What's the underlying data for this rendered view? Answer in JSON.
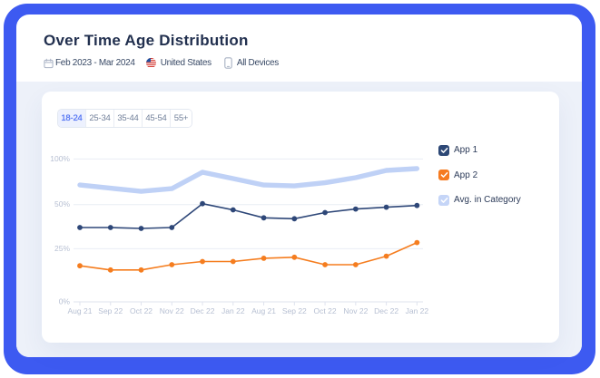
{
  "header": {
    "title": "Over Time Age Distribution",
    "date_range": "Feb 2023 - Mar 2024",
    "country": "United States",
    "devices": "All Devices"
  },
  "tabs": [
    {
      "label": "18-24",
      "selected": true
    },
    {
      "label": "25-34",
      "selected": false
    },
    {
      "label": "35-44",
      "selected": false
    },
    {
      "label": "45-54",
      "selected": false
    },
    {
      "label": "55+",
      "selected": false
    }
  ],
  "legend": [
    {
      "label": "App 1",
      "color": "#2d4876",
      "checked": true
    },
    {
      "label": "App 2",
      "color": "#f67b20",
      "checked": true
    },
    {
      "label": "Avg. in Category",
      "color": "#c5d5f7",
      "checked": true
    }
  ],
  "chart_data": {
    "type": "line",
    "title": "Over Time Age Distribution",
    "x_labels": [
      "Aug 21",
      "Sep 22",
      "Oct 22",
      "Nov 22",
      "Dec 22",
      "Jan 22",
      "Aug 21",
      "Sep 22",
      "Oct 22",
      "Nov 22",
      "Dec 22",
      "Jan 22"
    ],
    "y_tick_labels": [
      "0%",
      "25%",
      "50%",
      "100%"
    ],
    "y_tick_values": [
      0,
      25,
      50,
      100
    ],
    "ylim": [
      0,
      100
    ],
    "grid": "horizontal",
    "legend_position": "right",
    "series": [
      {
        "name": "App 1",
        "color": "#2e4778",
        "style": "line-with-dots",
        "values": [
          37,
          37,
          36.5,
          37,
          51,
          47,
          42.5,
          42,
          45.5,
          47.5,
          48.5,
          49.5
        ]
      },
      {
        "name": "App 2",
        "color": "#f57d1f",
        "style": "line-with-dots",
        "values": [
          17,
          15,
          15,
          17.5,
          19,
          19,
          20.5,
          21,
          17.5,
          17.5,
          21.5,
          28.5
        ]
      },
      {
        "name": "Avg. in Category",
        "color": "#bfd1f6",
        "style": "thick-line",
        "values": [
          71.5,
          68,
          64.5,
          67.5,
          85.5,
          78.5,
          71.5,
          70.5,
          74,
          79.5,
          87.5,
          89.5
        ]
      }
    ]
  },
  "colors": {
    "frame_blue": "#3d5af1",
    "card_bg": "#ffffff",
    "section_bg": "#edf1f9",
    "title_text": "#22304f",
    "meta_text": "#394a66",
    "icon_gray": "#a9b2c4",
    "tab_selected_bg": "#edf1fe",
    "tab_selected_text": "#5273f3",
    "tab_text": "#72809a",
    "legend_text": "#2b3a58",
    "axis_label": "#b6bfd2",
    "gridline": "#e9edf4",
    "axis_line": "#dfe3ee",
    "flag_red": "#d22f27",
    "flag_blue": "#1e50a0"
  }
}
